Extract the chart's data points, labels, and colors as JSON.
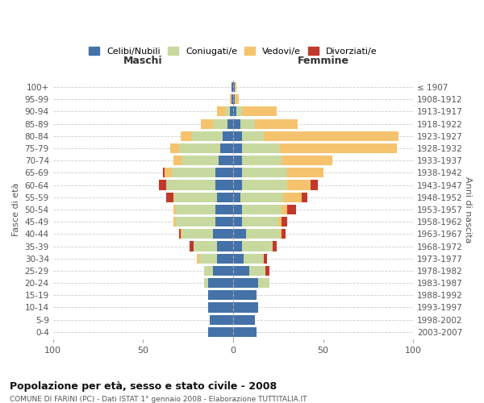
{
  "age_groups": [
    "0-4",
    "5-9",
    "10-14",
    "15-19",
    "20-24",
    "25-29",
    "30-34",
    "35-39",
    "40-44",
    "45-49",
    "50-54",
    "55-59",
    "60-64",
    "65-69",
    "70-74",
    "75-79",
    "80-84",
    "85-89",
    "90-94",
    "95-99",
    "100+"
  ],
  "birth_years": [
    "2003-2007",
    "1998-2002",
    "1993-1997",
    "1988-1992",
    "1983-1987",
    "1978-1982",
    "1973-1977",
    "1968-1972",
    "1963-1967",
    "1958-1962",
    "1953-1957",
    "1948-1952",
    "1943-1947",
    "1938-1942",
    "1933-1937",
    "1928-1932",
    "1923-1927",
    "1918-1922",
    "1913-1917",
    "1908-1912",
    "≤ 1907"
  ],
  "maschi": {
    "celibi": [
      14,
      13,
      14,
      14,
      14,
      11,
      9,
      9,
      11,
      10,
      10,
      9,
      10,
      10,
      8,
      7,
      6,
      3,
      2,
      1,
      1
    ],
    "coniugati": [
      0,
      0,
      0,
      0,
      2,
      5,
      10,
      13,
      17,
      22,
      22,
      24,
      27,
      24,
      20,
      23,
      17,
      8,
      2,
      0,
      0
    ],
    "vedovi": [
      0,
      0,
      0,
      0,
      0,
      0,
      1,
      0,
      1,
      1,
      1,
      0,
      0,
      4,
      5,
      5,
      6,
      7,
      5,
      1,
      0
    ],
    "divorziati": [
      0,
      0,
      0,
      0,
      0,
      0,
      0,
      2,
      1,
      0,
      0,
      4,
      4,
      1,
      0,
      0,
      0,
      0,
      0,
      0,
      0
    ]
  },
  "femmine": {
    "nubili": [
      13,
      12,
      14,
      13,
      14,
      9,
      6,
      5,
      7,
      5,
      5,
      4,
      5,
      5,
      5,
      5,
      5,
      4,
      2,
      1,
      1
    ],
    "coniugate": [
      0,
      0,
      0,
      0,
      6,
      9,
      11,
      17,
      19,
      20,
      22,
      24,
      25,
      25,
      22,
      21,
      12,
      8,
      3,
      0,
      0
    ],
    "vedove": [
      0,
      0,
      0,
      0,
      0,
      0,
      0,
      0,
      1,
      2,
      3,
      10,
      13,
      20,
      28,
      65,
      75,
      24,
      19,
      2,
      1
    ],
    "divorziate": [
      0,
      0,
      0,
      0,
      0,
      2,
      2,
      2,
      2,
      3,
      5,
      3,
      4,
      0,
      0,
      0,
      0,
      0,
      0,
      0,
      0
    ]
  },
  "colors": {
    "celibi": "#4472a8",
    "coniugati": "#c8d9a0",
    "vedovi": "#f5c36e",
    "divorziati": "#c0392b"
  },
  "title": "Popolazione per età, sesso e stato civile - 2008",
  "subtitle": "COMUNE DI FARINI (PC) - Dati ISTAT 1° gennaio 2008 - Elaborazione TUTTITALIA.IT",
  "xlabel_left": "Maschi",
  "xlabel_right": "Femmine",
  "ylabel_left": "Fasce di età",
  "ylabel_right": "Anni di nascita",
  "xlim": 100,
  "background_color": "#ffffff",
  "grid_color": "#cccccc"
}
